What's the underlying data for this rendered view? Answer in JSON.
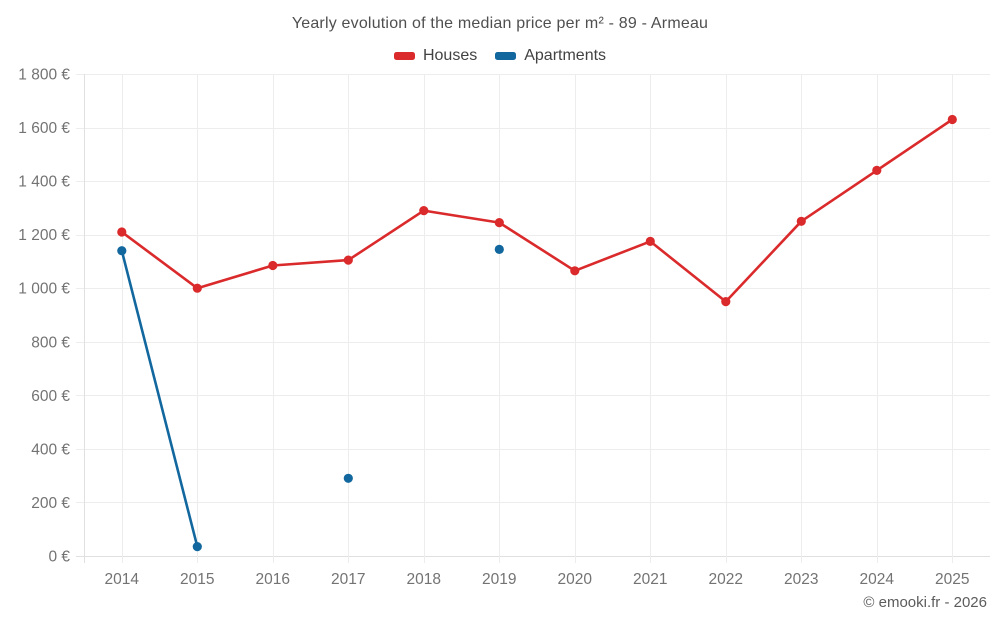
{
  "chart_data": {
    "type": "line",
    "title": "Yearly evolution of the median price per m² - 89 - Armeau",
    "x": [
      2014,
      2015,
      2016,
      2017,
      2018,
      2019,
      2020,
      2021,
      2022,
      2023,
      2024,
      2025
    ],
    "x_tick_labels": [
      "2014",
      "2015",
      "2016",
      "2017",
      "2018",
      "2019",
      "2020",
      "2021",
      "2022",
      "2023",
      "2024",
      "2025"
    ],
    "series": [
      {
        "name": "Houses",
        "color": "#da2a2b",
        "values": [
          1210,
          1000,
          1085,
          1105,
          1290,
          1245,
          1065,
          1175,
          950,
          1250,
          1440,
          1630
        ]
      },
      {
        "name": "Apartments",
        "color": "#12689e",
        "values": [
          1140,
          35,
          null,
          290,
          null,
          1145,
          null,
          null,
          null,
          null,
          null,
          null
        ]
      }
    ],
    "xlabel": "",
    "ylabel": "",
    "ylim": [
      0,
      1800
    ],
    "y_tick_step": 200,
    "y_tick_labels": [
      "0 €",
      "200 €",
      "400 €",
      "600 €",
      "800 €",
      "1 000 €",
      "1 200 €",
      "1 400 €",
      "1 600 €",
      "1 800 €"
    ],
    "grid": true,
    "legend_position": "top"
  },
  "footer": {
    "credit": "© emooki.fr - 2026"
  }
}
